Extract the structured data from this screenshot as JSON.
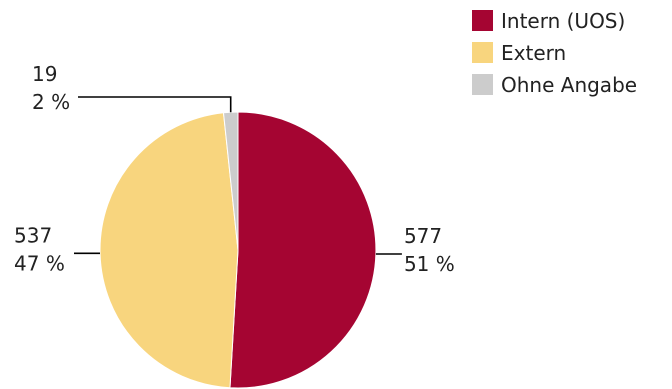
{
  "chart_data": {
    "type": "pie",
    "title": "",
    "slices": [
      {
        "name": "Intern (UOS)",
        "value": 577,
        "percent_label": "51 %",
        "color": "#A50532"
      },
      {
        "name": "Extern",
        "value": 537,
        "percent_label": "47 %",
        "color": "#F8D57E"
      },
      {
        "name": "Ohne Angabe",
        "value": 19,
        "percent_label": "2 %",
        "color": "#CCCCCC"
      }
    ],
    "legend_position": "top-right",
    "start_angle_deg": 0,
    "direction": "clockwise"
  }
}
